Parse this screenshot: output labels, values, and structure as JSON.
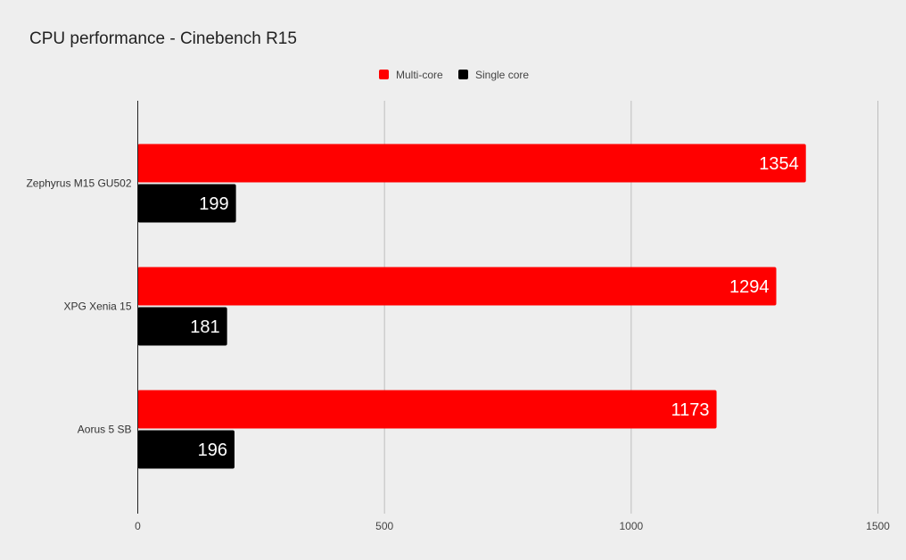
{
  "chart_data": {
    "type": "bar",
    "orientation": "horizontal",
    "title": "CPU performance - Cinebench R15",
    "categories": [
      "Zephyrus M15 GU502",
      "XPG Xenia 15",
      "Aorus 5 SB"
    ],
    "series": [
      {
        "name": "Multi-core",
        "values": [
          1354,
          1294,
          1173
        ],
        "color": "#ff0000"
      },
      {
        "name": "Single core",
        "values": [
          199,
          181,
          196
        ],
        "color": "#000000"
      }
    ],
    "xlim": [
      0,
      1500
    ],
    "xticks": [
      0,
      500,
      1000,
      1500
    ],
    "grid": true,
    "legend_position": "top-center",
    "data_labels": true,
    "gridline_color": "#bdbdbd",
    "axis_color": "#222222",
    "background_color": "#eeeeee"
  }
}
